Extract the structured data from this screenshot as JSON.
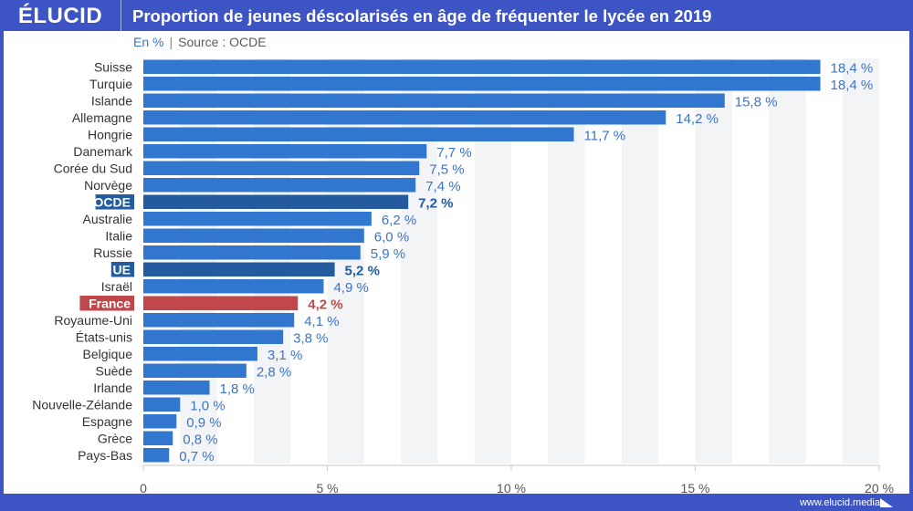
{
  "header": {
    "logo": "ÉLUCID",
    "title": "Proportion de jeunes déscolarisés en âge de fréquenter le lycée en 2019"
  },
  "subtitle": {
    "unit": "En %",
    "separator": "|",
    "source": "Source : OCDE"
  },
  "footer": {
    "url": "www.elucid.media"
  },
  "colors": {
    "default_bar": "#3177cf",
    "aggregate_bar": "#245a9e",
    "highlight_bar": "#c0484a",
    "default_label": "#3b74c8",
    "aggregate_label": "#245a9e",
    "highlight_label": "#c0484a",
    "band": "#f3f4f6"
  },
  "chart_data": {
    "type": "bar",
    "orientation": "horizontal",
    "title": "Proportion de jeunes déscolarisés en âge de fréquenter le lycée en 2019",
    "subtitle": "En % | Source : OCDE",
    "xlabel": "",
    "ylabel": "",
    "xlim": [
      0,
      20
    ],
    "x_ticks": [
      0,
      5,
      10,
      15,
      20
    ],
    "x_tick_labels": [
      "0",
      "5 %",
      "10 %",
      "15 %",
      "20 %"
    ],
    "grid": "alternating vertical bands",
    "categories": [
      "Suisse",
      "Turquie",
      "Islande",
      "Allemagne",
      "Hongrie",
      "Danemark",
      "Corée du Sud",
      "Norvège",
      "OCDE",
      "Australie",
      "Italie",
      "Russie",
      "UE",
      "Israël",
      "France",
      "Royaume-Uni",
      "États-unis",
      "Belgique",
      "Suède",
      "Irlande",
      "Nouvelle-Zélande",
      "Espagne",
      "Grèce",
      "Pays-Bas"
    ],
    "values": [
      18.4,
      18.4,
      15.8,
      14.2,
      11.7,
      7.7,
      7.5,
      7.4,
      7.2,
      6.2,
      6.0,
      5.9,
      5.2,
      4.9,
      4.2,
      4.1,
      3.8,
      3.1,
      2.8,
      1.8,
      1.0,
      0.9,
      0.8,
      0.7
    ],
    "value_labels": [
      "18,4 %",
      "18,4 %",
      "15,8 %",
      "14,2 %",
      "11,7 %",
      "7,7 %",
      "7,5 %",
      "7,4 %",
      "7,2 %",
      "6,2 %",
      "6,0 %",
      "5,9 %",
      "5,2 %",
      "4,9 %",
      "4,2 %",
      "4,1 %",
      "3,8 %",
      "3,1 %",
      "2,8 %",
      "1,8 %",
      "1,0 %",
      "0,9 %",
      "0,8 %",
      "0,7 %"
    ],
    "styles": [
      "default",
      "default",
      "default",
      "default",
      "default",
      "default",
      "default",
      "default",
      "aggregate",
      "default",
      "default",
      "default",
      "aggregate",
      "default",
      "highlight",
      "default",
      "default",
      "default",
      "default",
      "default",
      "default",
      "default",
      "default",
      "default"
    ]
  }
}
